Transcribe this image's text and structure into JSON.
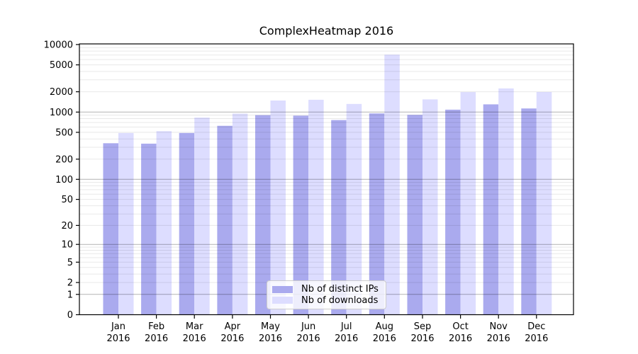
{
  "chart_data": {
    "type": "bar",
    "title": "ComplexHeatmap 2016",
    "y_scale": "log1p",
    "grid": "horizontal, minor + major (log decades), drawn over bars",
    "legend_position": "inside plot, lower center",
    "categories": [
      "Jan",
      "Feb",
      "Mar",
      "Apr",
      "May",
      "Jun",
      "Jul",
      "Aug",
      "Sep",
      "Oct",
      "Nov",
      "Dec"
    ],
    "x_tick_year": "2016",
    "series": [
      {
        "name": "Nb of distinct IPs",
        "color": "#aaaaee",
        "values": [
          345,
          340,
          490,
          625,
          900,
          885,
          760,
          955,
          910,
          1085,
          1300,
          1130
        ]
      },
      {
        "name": "Nb of downloads",
        "color": "#ddddff",
        "values": [
          490,
          520,
          830,
          950,
          1480,
          1520,
          1320,
          7080,
          1540,
          1975,
          2240,
          1980
        ]
      }
    ],
    "y_ticks": [
      0,
      1,
      2,
      5,
      10,
      20,
      50,
      100,
      200,
      500,
      1000,
      2000,
      5000,
      10000
    ],
    "ylim": [
      0,
      10500
    ],
    "xlabel": "",
    "ylabel": ""
  }
}
